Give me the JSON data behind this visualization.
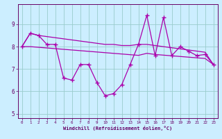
{
  "xlabel": "Windchill (Refroidissement éolien,°C)",
  "bg_color": "#cceeff",
  "line_color": "#aa00aa",
  "grid_color": "#99cccc",
  "text_color": "#660066",
  "x_hours": [
    0,
    1,
    2,
    3,
    4,
    5,
    6,
    7,
    8,
    9,
    10,
    11,
    12,
    13,
    14,
    15,
    16,
    17,
    18,
    19,
    20,
    21,
    22,
    23
  ],
  "y_main": [
    8.0,
    8.6,
    8.5,
    8.1,
    8.1,
    6.6,
    6.5,
    7.2,
    7.2,
    6.4,
    5.8,
    5.9,
    6.3,
    7.2,
    8.1,
    9.4,
    7.6,
    9.3,
    7.6,
    8.0,
    7.8,
    7.6,
    7.65,
    7.2
  ],
  "y_upper": [
    8.0,
    8.6,
    8.5,
    8.45,
    8.4,
    8.35,
    8.3,
    8.25,
    8.2,
    8.15,
    8.1,
    8.1,
    8.05,
    8.05,
    8.1,
    8.1,
    8.05,
    8.0,
    7.95,
    7.9,
    7.85,
    7.8,
    7.75,
    7.2
  ],
  "y_lower": [
    8.0,
    8.0,
    7.97,
    7.94,
    7.91,
    7.88,
    7.85,
    7.82,
    7.79,
    7.76,
    7.73,
    7.7,
    7.67,
    7.64,
    7.61,
    7.7,
    7.65,
    7.62,
    7.59,
    7.56,
    7.53,
    7.5,
    7.47,
    7.2
  ],
  "ylim": [
    4.8,
    9.9
  ],
  "yticks": [
    5,
    6,
    7,
    8,
    9
  ],
  "xticks": [
    0,
    1,
    2,
    3,
    4,
    5,
    6,
    7,
    8,
    9,
    10,
    11,
    12,
    13,
    14,
    15,
    16,
    17,
    18,
    19,
    20,
    21,
    22,
    23
  ]
}
